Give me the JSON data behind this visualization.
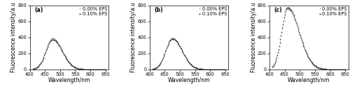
{
  "panels": [
    {
      "label": "(a)",
      "xlim": [
        400,
        660
      ],
      "ylim": [
        0,
        800
      ],
      "xticks": [
        400,
        450,
        500,
        550,
        600,
        650
      ],
      "yticks": [
        0,
        200,
        400,
        600,
        800
      ],
      "peak_0": 395,
      "peak_10": 375
    },
    {
      "label": "(b)",
      "xlim": [
        400,
        660
      ],
      "ylim": [
        0,
        800
      ],
      "xticks": [
        400,
        450,
        500,
        550,
        600,
        650
      ],
      "yticks": [
        0,
        200,
        400,
        600,
        800
      ],
      "peak_0": 395,
      "peak_10": 385
    },
    {
      "label": "(c)",
      "xlim": [
        400,
        660
      ],
      "ylim": [
        0,
        800
      ],
      "xticks": [
        400,
        450,
        500,
        550,
        600,
        650
      ],
      "yticks": [
        0,
        200,
        400,
        600,
        800
      ],
      "peak_0": 755,
      "peak_10": 775
    }
  ],
  "ylabel": "Fluorescence intensity/a.u",
  "xlabel": "Wavelength/nm",
  "marker_size": 1.2,
  "font_size": 5.5,
  "label_font_size": 5.5,
  "legend_font_size": 4.8,
  "tick_font_size": 4.8,
  "color_0": "#999999",
  "color_10": "#333333"
}
